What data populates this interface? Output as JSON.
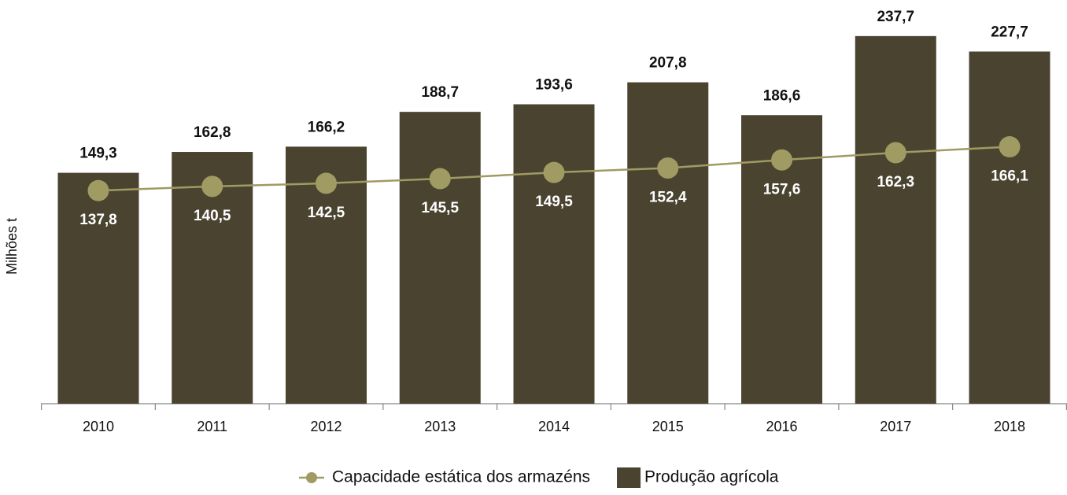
{
  "chart_data": {
    "type": "combo",
    "y_label": "Milhões t",
    "categories": [
      "2010",
      "2011",
      "2012",
      "2013",
      "2014",
      "2015",
      "2016",
      "2017",
      "2018"
    ],
    "series": [
      {
        "name": "Capacidade estática dos armazéns",
        "type": "line",
        "color": "#a09a63",
        "values": [
          137.8,
          140.5,
          142.5,
          145.5,
          149.5,
          152.4,
          157.6,
          162.3,
          166.1
        ],
        "value_labels": [
          "137,8",
          "140,5",
          "142,5",
          "145,5",
          "149,5",
          "152,4",
          "157,6",
          "162,3",
          "166,1"
        ]
      },
      {
        "name": "Produção agrícola",
        "type": "bar",
        "color": "#4a4330",
        "values": [
          149.3,
          162.8,
          166.2,
          188.7,
          193.6,
          207.8,
          186.6,
          237.7,
          227.7
        ],
        "value_labels": [
          "149,3",
          "162,8",
          "166,2",
          "188,7",
          "193,6",
          "207,8",
          "186,6",
          "237,7",
          "227,7"
        ]
      }
    ],
    "ylim": [
      0,
      260
    ],
    "legend": "bottom"
  }
}
